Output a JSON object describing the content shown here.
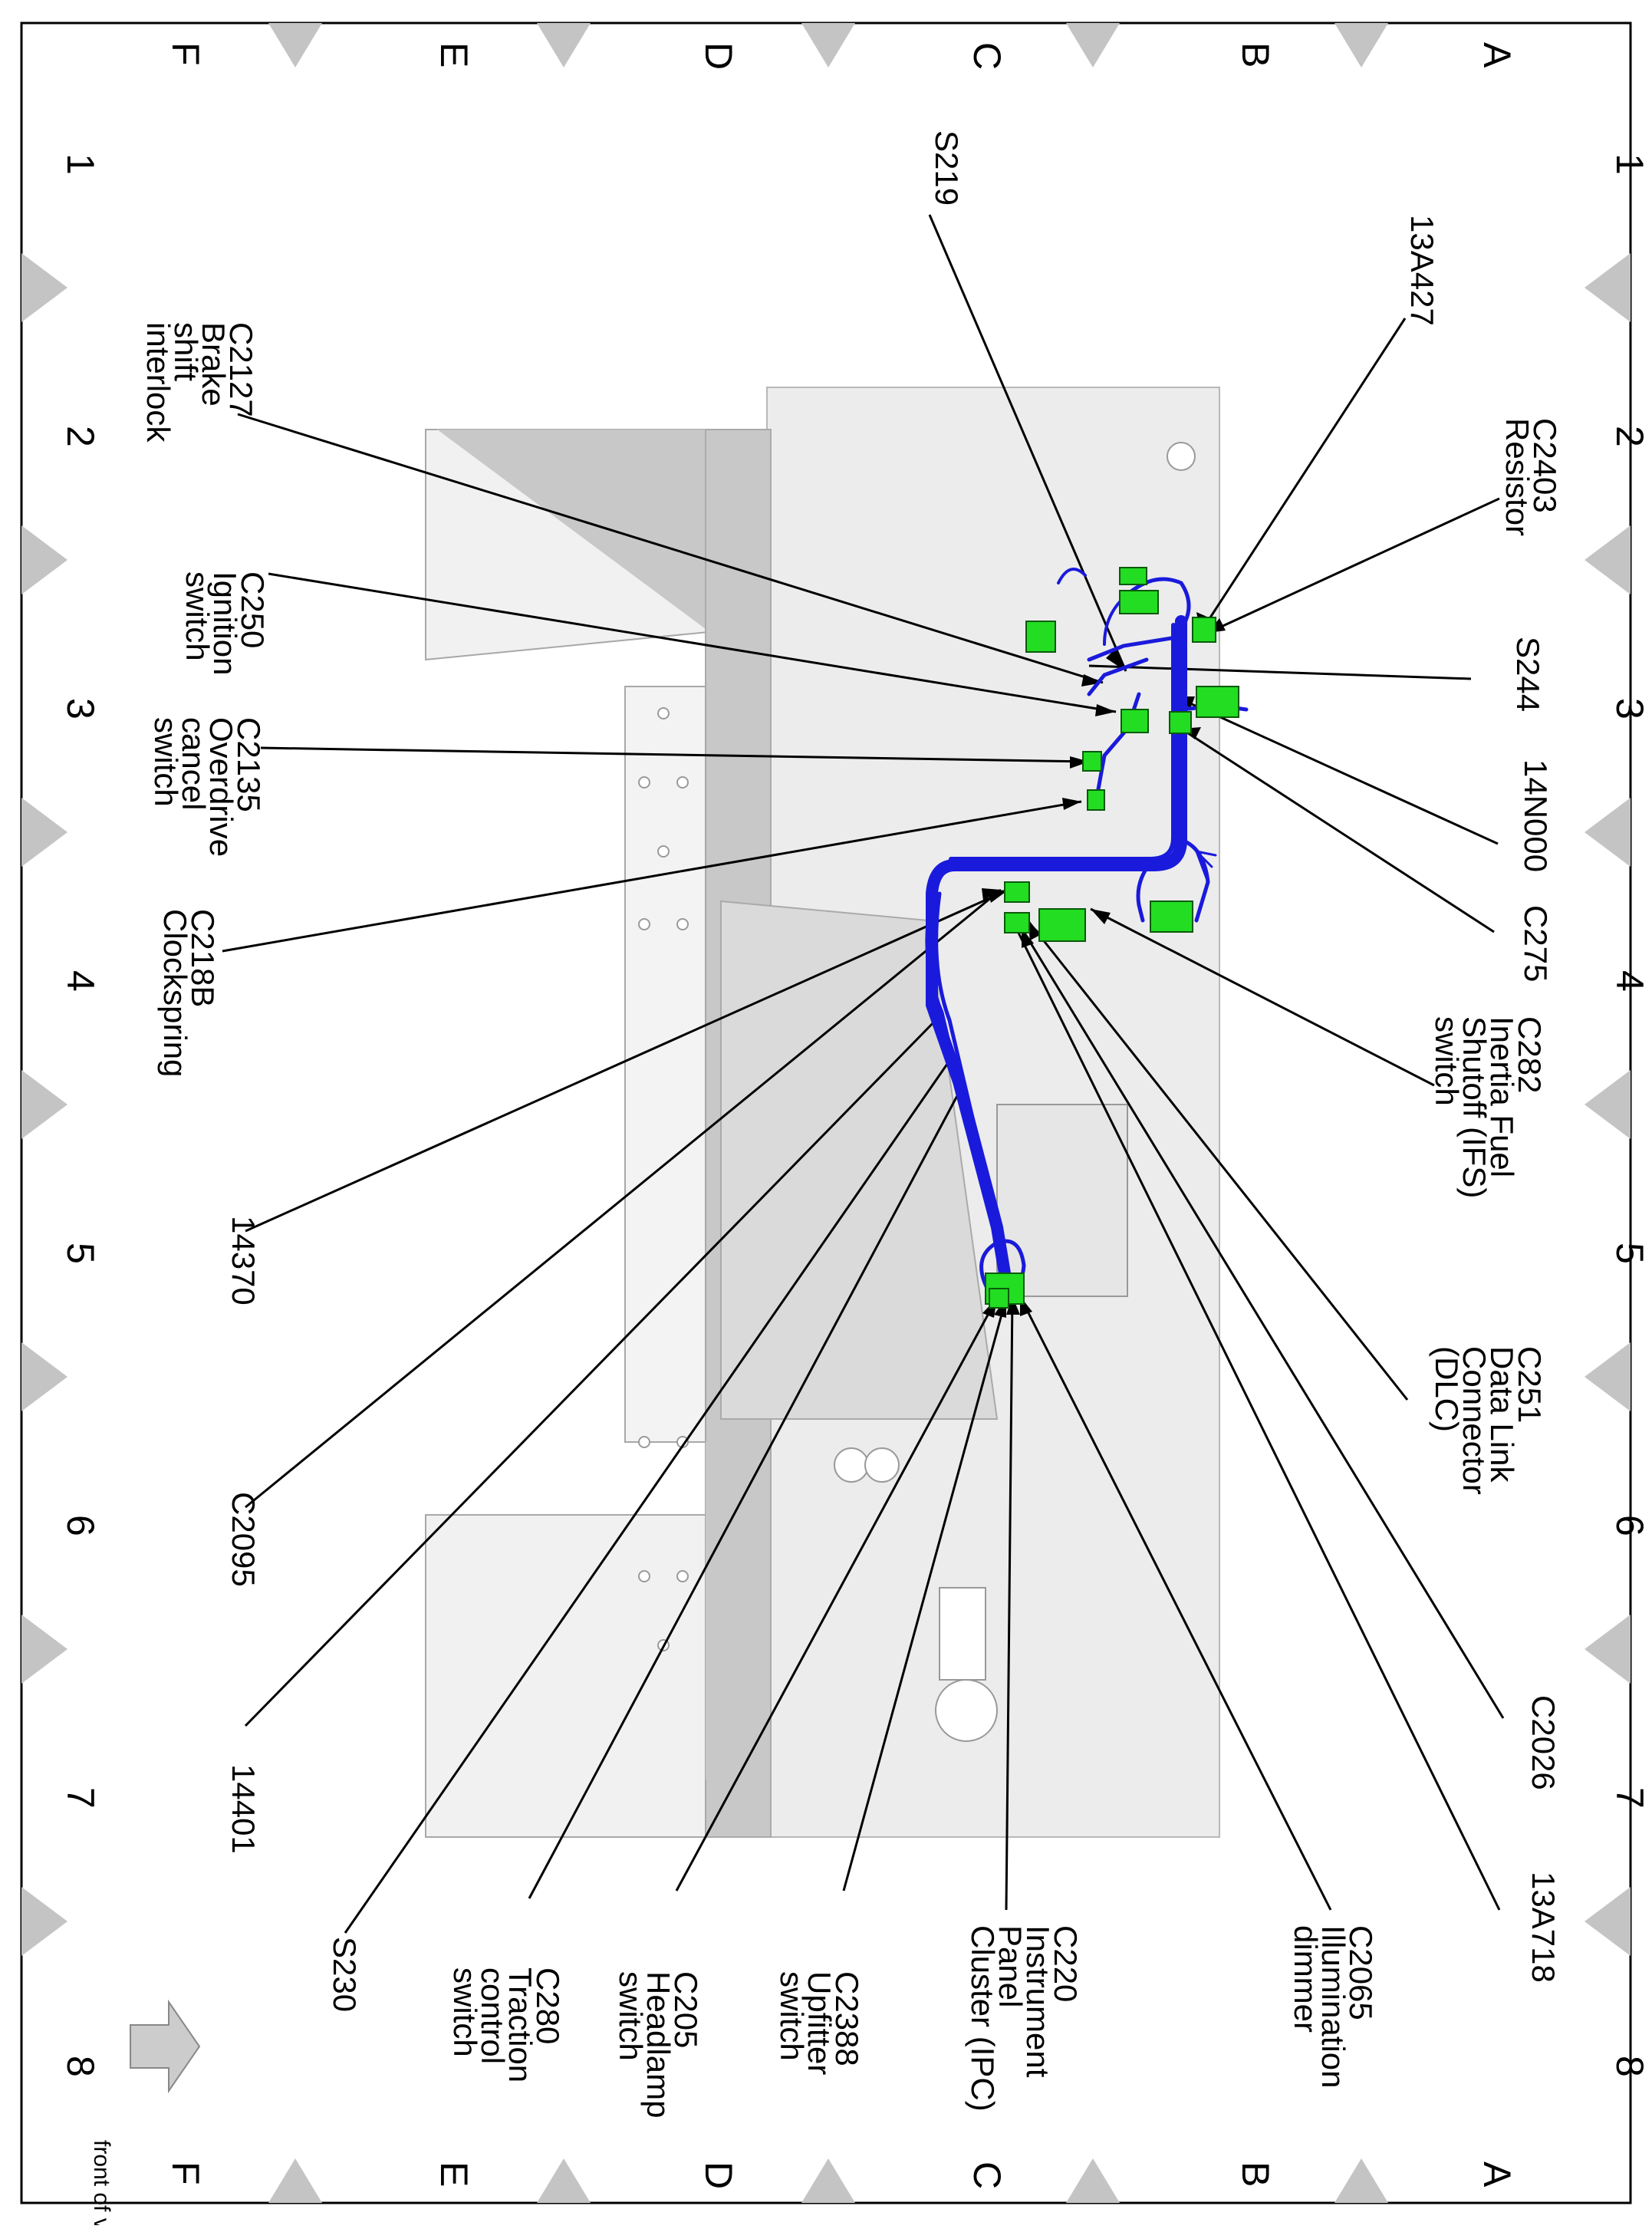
{
  "grid": {
    "rows": [
      "A",
      "B",
      "C",
      "D",
      "E",
      "F"
    ],
    "cols": [
      "1",
      "2",
      "3",
      "4",
      "5",
      "6",
      "7",
      "8"
    ]
  },
  "front_note": "front of vehicle",
  "callouts": [
    {
      "id": "s219",
      "lines": [
        "S219"
      ]
    },
    {
      "id": "13a427",
      "lines": [
        "13A427"
      ]
    },
    {
      "id": "c2403",
      "lines": [
        "C2403",
        "Resistor"
      ]
    },
    {
      "id": "s244",
      "lines": [
        "S244"
      ]
    },
    {
      "id": "14n000",
      "lines": [
        "14N000"
      ]
    },
    {
      "id": "c275",
      "lines": [
        "C275"
      ]
    },
    {
      "id": "c282",
      "lines": [
        "C282",
        "Inertia Fuel",
        "Shutoff (IFS)",
        "switch"
      ]
    },
    {
      "id": "c251",
      "lines": [
        "C251",
        "Data Link",
        "Connector",
        "(DLC)"
      ]
    },
    {
      "id": "c2026",
      "lines": [
        "C2026"
      ]
    },
    {
      "id": "13a718",
      "lines": [
        "13A718"
      ]
    },
    {
      "id": "c2065",
      "lines": [
        "C2065",
        "Illumination",
        "dimmer"
      ]
    },
    {
      "id": "c220",
      "lines": [
        "C220",
        "Instrument",
        "Panel",
        "Cluster (IPC)"
      ]
    },
    {
      "id": "c2388",
      "lines": [
        "C2388",
        "Upfitter",
        "switch"
      ]
    },
    {
      "id": "c205",
      "lines": [
        "C205",
        "Headlamp",
        "switch"
      ]
    },
    {
      "id": "c280",
      "lines": [
        "C280",
        "Traction",
        "control",
        "switch"
      ]
    },
    {
      "id": "s230",
      "lines": [
        "S230"
      ]
    },
    {
      "id": "14401",
      "lines": [
        "14401"
      ]
    },
    {
      "id": "c2095",
      "lines": [
        "C2095"
      ]
    },
    {
      "id": "14370",
      "lines": [
        "14370"
      ]
    },
    {
      "id": "c218b",
      "lines": [
        "C218B",
        "Clockspring"
      ]
    },
    {
      "id": "c2135",
      "lines": [
        "C2135",
        "Overdrive",
        "cancel",
        "switch"
      ]
    },
    {
      "id": "c250",
      "lines": [
        "C250",
        "Ignition",
        "switch"
      ]
    },
    {
      "id": "c2127",
      "lines": [
        "C2127",
        "Brake",
        "shift",
        "interlock"
      ]
    }
  ],
  "colors": {
    "harness": "#1a1adc",
    "connector": "#22dd22",
    "structure_light": "#ececec",
    "structure_mid": "#c8c8c8",
    "frame": "#000000",
    "marker": "#c4c4c4"
  }
}
